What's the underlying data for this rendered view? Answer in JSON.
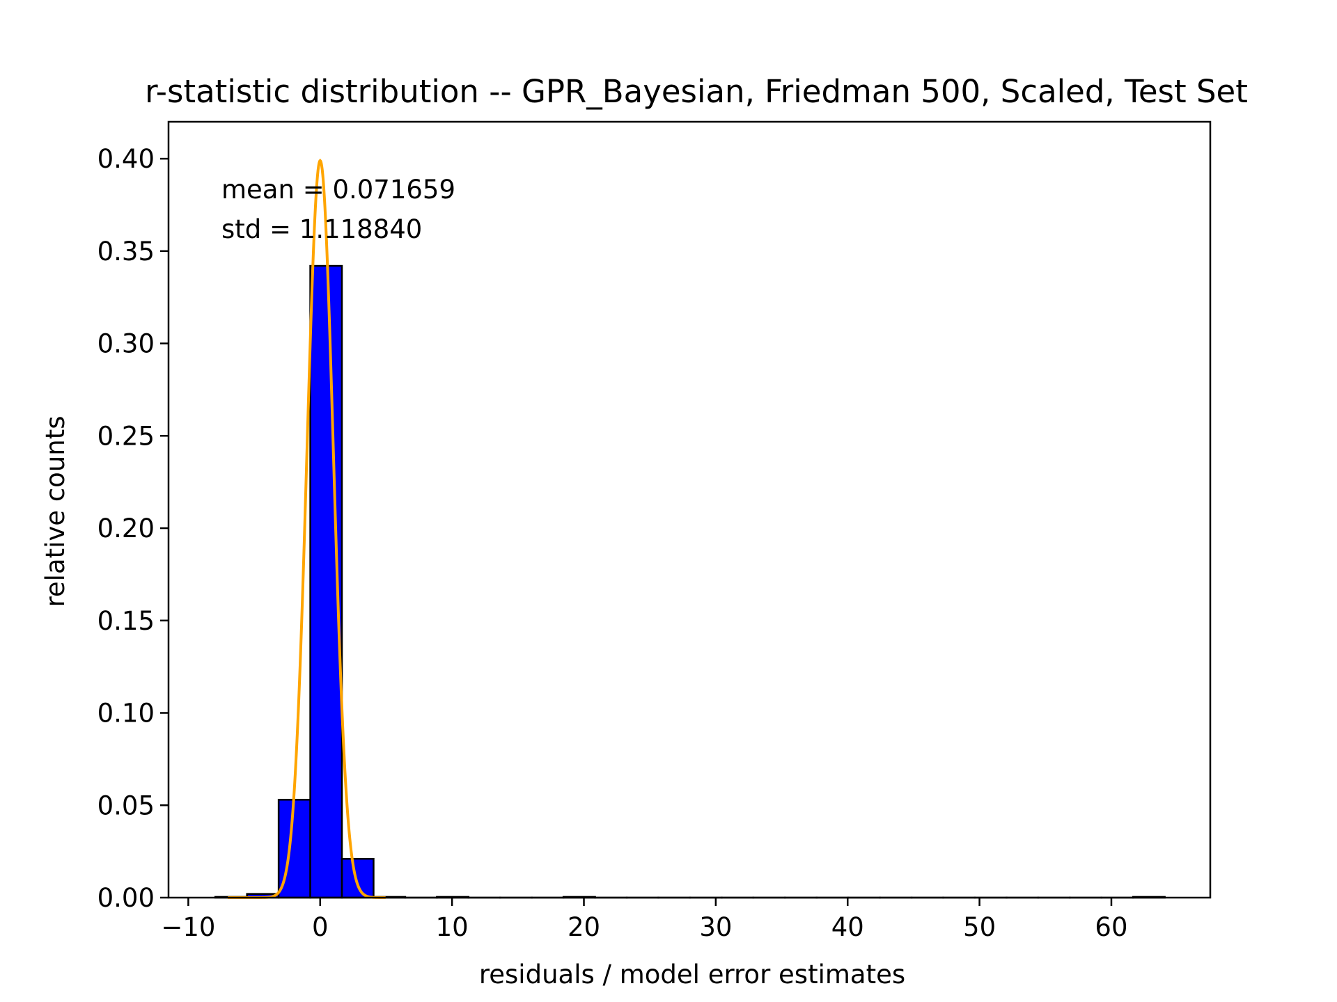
{
  "chart_data": {
    "type": "bar",
    "title": "r-statistic distribution -- GPR_Bayesian, Friedman 500, Scaled, Test Set",
    "xlabel": "residuals / model error estimates",
    "ylabel": "relative counts",
    "xlim": [
      -11.5,
      67.5
    ],
    "ylim": [
      0,
      0.42
    ],
    "xticks": [
      -10,
      0,
      10,
      20,
      30,
      40,
      50,
      60
    ],
    "xtick_labels": [
      "−10",
      "0",
      "10",
      "20",
      "30",
      "40",
      "50",
      "60"
    ],
    "yticks": [
      0.0,
      0.05,
      0.1,
      0.15,
      0.2,
      0.25,
      0.3,
      0.35,
      0.4
    ],
    "ytick_labels": [
      "0.00",
      "0.05",
      "0.10",
      "0.15",
      "0.20",
      "0.25",
      "0.30",
      "0.35",
      "0.40"
    ],
    "grid": false,
    "bins": {
      "edges": [
        -7.95,
        -5.55,
        -3.15,
        -0.75,
        1.65,
        4.05,
        6.45,
        8.85,
        11.25,
        13.65,
        16.05,
        18.45,
        20.85,
        23.25,
        25.65,
        28.05,
        30.45,
        32.85,
        35.25,
        37.65,
        40.05,
        42.45,
        44.85,
        47.25,
        49.65,
        52.05,
        54.45,
        56.85,
        59.25,
        61.65,
        64.05
      ],
      "values": [
        0.0004,
        0.002,
        0.053,
        0.342,
        0.021,
        0.0004,
        0.0,
        0.0004,
        0.0,
        0.0,
        0.0,
        0.0004,
        0.0,
        0.0,
        0.0,
        0.0,
        0.0,
        0.0,
        0.0,
        0.0,
        0.0,
        0.0,
        0.0,
        0.0,
        0.0,
        0.0,
        0.0,
        0.0,
        0.0,
        0.0004
      ]
    },
    "bar_color": "#0000ff",
    "bar_edge_color": "#000000",
    "curve": {
      "type": "gaussian",
      "mean": 0,
      "std": 1,
      "color": "#ffa500"
    },
    "annotations": [
      "mean = 0.071659",
      "std = 1.118840"
    ]
  }
}
